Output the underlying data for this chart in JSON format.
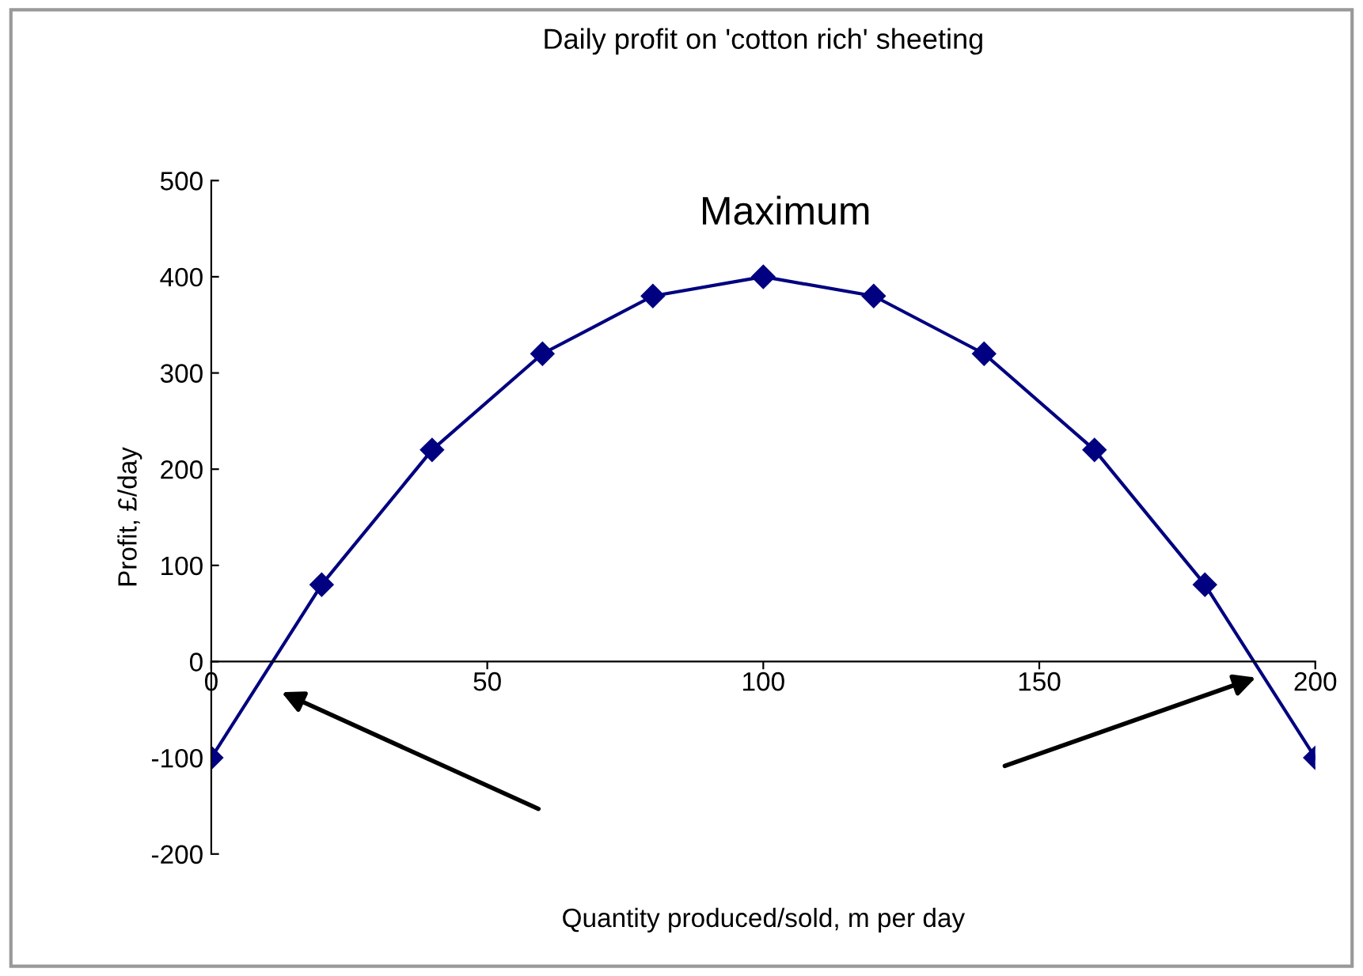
{
  "chart_data": {
    "type": "line",
    "title": "Daily profit on 'cotton rich' sheeting",
    "xlabel": "Quantity produced/sold, m per day",
    "ylabel": "Profit, £/day",
    "x": [
      0,
      20,
      40,
      60,
      80,
      100,
      120,
      140,
      160,
      180,
      200
    ],
    "series": [
      {
        "color": "#000080",
        "values": [
          -100,
          80,
          220,
          320,
          380,
          400,
          380,
          320,
          220,
          80,
          -100
        ]
      }
    ],
    "xlim": [
      0,
      200
    ],
    "xticks": [
      0,
      50,
      100,
      150,
      200
    ],
    "ylim": [
      -200,
      500
    ],
    "yticks": [
      -200,
      -100,
      0,
      100,
      200,
      300,
      400,
      500
    ],
    "annotations": [
      "Maximum"
    ],
    "marker": "diamond",
    "line_style": "solid",
    "grid": false,
    "legend": false
  }
}
